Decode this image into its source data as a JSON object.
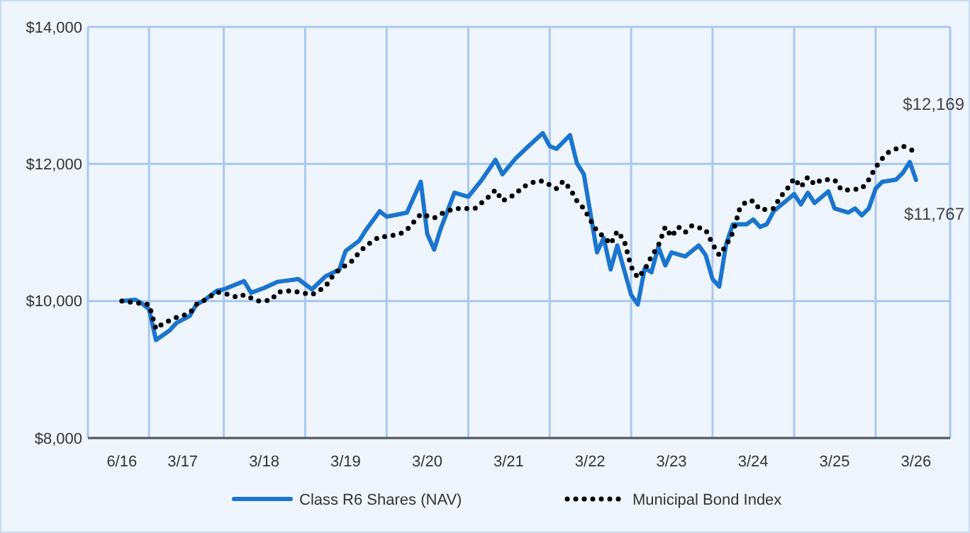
{
  "chart_data": {
    "type": "line",
    "xlim": [
      "2016-01",
      "2026-08"
    ],
    "ylim": [
      8000,
      14000
    ],
    "yticks": [
      {
        "value": 8000,
        "label": "$8,000"
      },
      {
        "value": 10000,
        "label": "$10,000"
      },
      {
        "value": 12000,
        "label": "$12,000"
      },
      {
        "value": 14000,
        "label": "$14,000"
      }
    ],
    "xticks": [
      {
        "value": "2016-06",
        "label": "6/16"
      },
      {
        "value": "2017-03",
        "label": "3/17"
      },
      {
        "value": "2018-03",
        "label": "3/18"
      },
      {
        "value": "2019-03",
        "label": "3/19"
      },
      {
        "value": "2020-03",
        "label": "3/20"
      },
      {
        "value": "2021-03",
        "label": "3/21"
      },
      {
        "value": "2022-03",
        "label": "3/22"
      },
      {
        "value": "2023-03",
        "label": "3/23"
      },
      {
        "value": "2024-03",
        "label": "3/24"
      },
      {
        "value": "2025-03",
        "label": "3/25"
      },
      {
        "value": "2026-03",
        "label": "3/26"
      },
      {
        "value": "2016-10",
        "label": null
      },
      {
        "value": "2017-09",
        "label": null
      },
      {
        "value": "2018-09",
        "label": null
      },
      {
        "value": "2019-09",
        "label": null
      },
      {
        "value": "2020-09",
        "label": null
      },
      {
        "value": "2021-09",
        "label": null
      },
      {
        "value": "2022-09",
        "label": null
      },
      {
        "value": "2023-09",
        "label": null
      },
      {
        "value": "2024-09",
        "label": null
      },
      {
        "value": "2025-09",
        "label": null
      }
    ],
    "grid": true,
    "legend": "bottom",
    "series": [
      {
        "name": "Class R6 Shares (NAV)",
        "color": "#1a75cf",
        "line_style": "solid",
        "x": [
          "2016-06",
          "2016-08",
          "2016-09",
          "2016-10",
          "2016-11",
          "2017-01",
          "2017-02",
          "2017-04",
          "2017-05",
          "2017-06",
          "2017-08",
          "2017-09",
          "2017-12",
          "2018-01",
          "2018-03",
          "2018-05",
          "2018-08",
          "2018-10",
          "2018-12",
          "2019-02",
          "2019-03",
          "2019-05",
          "2019-06",
          "2019-08",
          "2019-09",
          "2019-12",
          "2020-02",
          "2020-03",
          "2020-04",
          "2020-05",
          "2020-07",
          "2020-09",
          "2020-11",
          "2021-01",
          "2021-02",
          "2021-04",
          "2021-06",
          "2021-08",
          "2021-09",
          "2021-10",
          "2021-12",
          "2022-01",
          "2022-02",
          "2022-04",
          "2022-05",
          "2022-06",
          "2022-07",
          "2022-09",
          "2022-10",
          "2022-11",
          "2022-12",
          "2023-01",
          "2023-02",
          "2023-03",
          "2023-05",
          "2023-07",
          "2023-08",
          "2023-09",
          "2023-10",
          "2023-11",
          "2023-12",
          "2024-02",
          "2024-03",
          "2024-04",
          "2024-05",
          "2024-06",
          "2024-09",
          "2024-10",
          "2024-11",
          "2024-12",
          "2025-02",
          "2025-03",
          "2025-05",
          "2025-06",
          "2025-07",
          "2025-08",
          "2025-09",
          "2025-10",
          "2025-12",
          "2026-01",
          "2026-02",
          "2026-03"
        ],
        "values": [
          10000,
          10020,
          9960,
          9880,
          9430,
          9570,
          9680,
          9780,
          9950,
          10000,
          10150,
          10170,
          10290,
          10120,
          10190,
          10280,
          10320,
          10170,
          10360,
          10460,
          10730,
          10880,
          11040,
          11310,
          11230,
          11290,
          11740,
          10980,
          10750,
          11060,
          11580,
          11520,
          11770,
          12060,
          11850,
          12080,
          12270,
          12450,
          12260,
          12220,
          12420,
          12010,
          11850,
          10710,
          10920,
          10460,
          10810,
          10090,
          9950,
          10480,
          10420,
          10790,
          10520,
          10710,
          10650,
          10810,
          10670,
          10320,
          10210,
          10830,
          11120,
          11120,
          11190,
          11080,
          11120,
          11310,
          11560,
          11410,
          11580,
          11430,
          11600,
          11350,
          11290,
          11350,
          11250,
          11350,
          11640,
          11740,
          11770,
          11870,
          12030,
          11767
        ]
      },
      {
        "name": "Municipal Bond Index",
        "color": "#000000",
        "line_style": "dotted",
        "x": [
          "2016-06",
          "2016-10",
          "2016-11",
          "2016-12",
          "2017-02",
          "2017-04",
          "2017-05",
          "2017-06",
          "2017-08",
          "2017-10",
          "2017-11",
          "2017-12",
          "2018-02",
          "2018-04",
          "2018-05",
          "2018-07",
          "2018-09",
          "2018-10",
          "2018-12",
          "2019-01",
          "2019-02",
          "2019-04",
          "2019-05",
          "2019-06",
          "2019-08",
          "2019-09",
          "2019-11",
          "2019-12",
          "2020-02",
          "2020-04",
          "2020-05",
          "2020-07",
          "2020-08",
          "2020-10",
          "2020-12",
          "2021-01",
          "2021-02",
          "2021-04",
          "2021-05",
          "2021-07",
          "2021-08",
          "2021-10",
          "2021-11",
          "2021-12",
          "2022-01",
          "2022-02",
          "2022-03",
          "2022-04",
          "2022-05",
          "2022-06",
          "2022-07",
          "2022-08",
          "2022-09",
          "2022-10",
          "2022-11",
          "2022-12",
          "2023-01",
          "2023-02",
          "2023-03",
          "2023-04",
          "2023-05",
          "2023-06",
          "2023-08",
          "2023-09",
          "2023-10",
          "2023-11",
          "2023-12",
          "2024-01",
          "2024-02",
          "2024-03",
          "2024-04",
          "2024-06",
          "2024-07",
          "2024-08",
          "2024-09",
          "2024-10",
          "2024-11",
          "2024-12",
          "2025-01",
          "2025-03",
          "2025-04",
          "2025-05",
          "2025-07",
          "2025-08",
          "2025-09",
          "2025-10",
          "2025-11",
          "2026-01",
          "2026-02",
          "2026-03"
        ],
        "values": [
          10000,
          9950,
          9590,
          9670,
          9760,
          9820,
          9950,
          10000,
          10130,
          10090,
          10050,
          10090,
          10000,
          10010,
          10130,
          10150,
          10110,
          10090,
          10210,
          10360,
          10460,
          10590,
          10710,
          10810,
          10940,
          10940,
          10980,
          11040,
          11270,
          11210,
          11270,
          11350,
          11350,
          11350,
          11520,
          11620,
          11460,
          11560,
          11660,
          11750,
          11750,
          11640,
          11750,
          11640,
          11460,
          11350,
          11190,
          11020,
          10940,
          10830,
          11020,
          10880,
          10500,
          10340,
          10460,
          10650,
          10810,
          11080,
          10940,
          11080,
          11000,
          11100,
          11040,
          10830,
          10670,
          10810,
          11000,
          11350,
          11460,
          11460,
          11330,
          11350,
          11520,
          11640,
          11790,
          11660,
          11810,
          11700,
          11770,
          11770,
          11620,
          11620,
          11640,
          11770,
          11950,
          12080,
          12180,
          12260,
          12220,
          12169
        ]
      }
    ],
    "annotations": [
      {
        "text": "$12,169",
        "x": "2026-03",
        "y": 12169
      },
      {
        "text": "$11,767",
        "x": "2026-03",
        "y": 11767
      }
    ]
  }
}
